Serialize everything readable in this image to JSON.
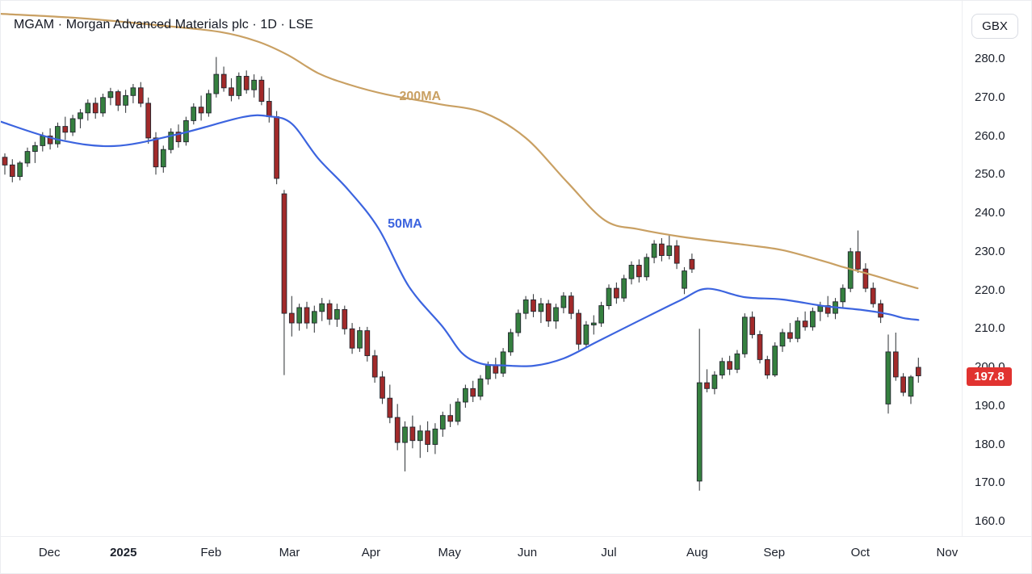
{
  "header": {
    "symbol_title": "MGAM · Morgan Advanced Materials plc · 1D · LSE",
    "currency_button": "GBX"
  },
  "price_axis": {
    "ticks": [
      "280.0",
      "270.0",
      "260.0",
      "250.0",
      "240.0",
      "230.0",
      "220.0",
      "210.0",
      "200.0",
      "190.0",
      "180.0",
      "170.0",
      "160.0"
    ],
    "min": 160,
    "max": 280,
    "last_price": "197.8",
    "last_price_value": 197.8
  },
  "time_axis": {
    "months": [
      {
        "label": "Dec",
        "index": 5.9
      },
      {
        "label": "2025",
        "index": 15.7,
        "bold": true
      },
      {
        "label": "Feb",
        "index": 27.3
      },
      {
        "label": "Mar",
        "index": 37.7
      },
      {
        "label": "Apr",
        "index": 48.5
      },
      {
        "label": "May",
        "index": 58.9
      },
      {
        "label": "Jun",
        "index": 69.2
      },
      {
        "label": "Jul",
        "index": 80.0
      },
      {
        "label": "Aug",
        "index": 91.7
      },
      {
        "label": "Sep",
        "index": 101.9
      },
      {
        "label": "Oct",
        "index": 113.3
      },
      {
        "label": "Nov",
        "index": 124.8
      }
    ]
  },
  "chart_data": {
    "type": "candlestick",
    "symbol": "MGAM",
    "company": "Morgan Advanced Materials plc",
    "interval": "1D",
    "exchange": "LSE",
    "unit": "GBX",
    "ylim": [
      160,
      280
    ],
    "grid": false,
    "last_close": 197.8,
    "colors": {
      "up": "#35803F",
      "down": "#A22A2A",
      "wick": "#3C4043",
      "body_border": "#21252E",
      "ma50": "#3C64DF",
      "ma200": "#C9A063",
      "last_label_bg": "#E13330"
    },
    "candles": [
      [
        254.5,
        255.5,
        250.0,
        252.5
      ],
      [
        252.5,
        254.0,
        248.0,
        249.5
      ],
      [
        249.5,
        253.5,
        248.5,
        253.0
      ],
      [
        253.0,
        257.0,
        252.0,
        256.0
      ],
      [
        256.0,
        258.5,
        253.0,
        257.5
      ],
      [
        257.5,
        261.0,
        256.0,
        260.0
      ],
      [
        260.0,
        262.0,
        256.5,
        258.0
      ],
      [
        258.0,
        263.5,
        257.0,
        262.5
      ],
      [
        262.5,
        265.0,
        259.0,
        261.0
      ],
      [
        261.0,
        265.5,
        260.0,
        264.5
      ],
      [
        264.5,
        267.0,
        262.0,
        266.0
      ],
      [
        266.0,
        269.5,
        264.0,
        268.5
      ],
      [
        268.5,
        270.0,
        264.5,
        266.0
      ],
      [
        266.0,
        271.0,
        265.0,
        270.0
      ],
      [
        270.0,
        272.5,
        268.0,
        271.5
      ],
      [
        271.5,
        272.0,
        266.5,
        268.0
      ],
      [
        268.0,
        272.0,
        266.0,
        270.5
      ],
      [
        270.5,
        273.5,
        268.5,
        272.5
      ],
      [
        272.5,
        274.0,
        267.5,
        268.5
      ],
      [
        268.5,
        270.0,
        258.0,
        259.5
      ],
      [
        259.5,
        261.0,
        250.0,
        252.0
      ],
      [
        252.0,
        257.5,
        250.5,
        256.5
      ],
      [
        256.5,
        262.0,
        255.5,
        261.0
      ],
      [
        261.0,
        263.0,
        257.0,
        258.5
      ],
      [
        258.5,
        265.0,
        257.5,
        264.0
      ],
      [
        264.0,
        268.5,
        263.0,
        267.5
      ],
      [
        267.5,
        270.5,
        264.0,
        266.0
      ],
      [
        266.0,
        272.0,
        265.0,
        271.0
      ],
      [
        271.0,
        280.5,
        270.0,
        276.0
      ],
      [
        276.0,
        278.0,
        271.5,
        272.5
      ],
      [
        272.5,
        275.0,
        269.0,
        270.5
      ],
      [
        270.5,
        276.5,
        269.5,
        275.5
      ],
      [
        275.5,
        277.0,
        271.0,
        272.0
      ],
      [
        272.0,
        276.0,
        270.0,
        274.5
      ],
      [
        274.5,
        275.5,
        268.0,
        269.0
      ],
      [
        269.0,
        272.5,
        263.5,
        265.0
      ],
      [
        265.0,
        266.5,
        247.5,
        249.0
      ],
      [
        245.0,
        246.0,
        198.0,
        214.0
      ],
      [
        214.0,
        218.5,
        208.0,
        211.5
      ],
      [
        211.5,
        216.5,
        209.5,
        215.5
      ],
      [
        215.5,
        217.0,
        210.0,
        211.5
      ],
      [
        211.5,
        216.0,
        209.0,
        214.5
      ],
      [
        214.5,
        218.0,
        212.0,
        216.5
      ],
      [
        216.5,
        217.5,
        211.0,
        212.5
      ],
      [
        212.5,
        216.5,
        210.5,
        215.0
      ],
      [
        215.0,
        216.0,
        208.5,
        210.0
      ],
      [
        210.0,
        211.5,
        203.5,
        205.0
      ],
      [
        205.0,
        210.5,
        204.0,
        209.5
      ],
      [
        209.5,
        210.5,
        201.5,
        203.0
      ],
      [
        203.0,
        204.5,
        196.0,
        197.5
      ],
      [
        197.5,
        199.0,
        190.5,
        192.0
      ],
      [
        192.0,
        195.5,
        185.5,
        187.0
      ],
      [
        187.0,
        190.5,
        178.5,
        180.5
      ],
      [
        180.5,
        186.0,
        173.0,
        184.5
      ],
      [
        184.5,
        187.5,
        179.0,
        181.0
      ],
      [
        181.0,
        185.0,
        176.5,
        183.5
      ],
      [
        183.5,
        186.0,
        178.0,
        180.0
      ],
      [
        180.0,
        185.5,
        177.5,
        184.0
      ],
      [
        184.0,
        188.5,
        182.0,
        187.5
      ],
      [
        187.5,
        190.5,
        184.5,
        186.0
      ],
      [
        186.0,
        192.0,
        185.0,
        191.0
      ],
      [
        191.0,
        195.5,
        189.5,
        194.5
      ],
      [
        194.5,
        196.5,
        191.0,
        192.5
      ],
      [
        192.5,
        198.0,
        191.5,
        197.0
      ],
      [
        197.0,
        201.5,
        195.5,
        200.5
      ],
      [
        200.5,
        202.5,
        197.0,
        198.5
      ],
      [
        198.5,
        205.0,
        197.5,
        204.0
      ],
      [
        204.0,
        210.0,
        203.0,
        209.0
      ],
      [
        209.0,
        215.0,
        208.0,
        214.0
      ],
      [
        214.0,
        218.5,
        212.5,
        217.5
      ],
      [
        217.5,
        219.0,
        213.0,
        214.5
      ],
      [
        214.5,
        218.0,
        211.5,
        216.5
      ],
      [
        216.5,
        217.5,
        210.5,
        212.0
      ],
      [
        212.0,
        216.5,
        210.0,
        215.5
      ],
      [
        215.5,
        219.5,
        214.0,
        218.5
      ],
      [
        218.5,
        219.5,
        212.5,
        214.0
      ],
      [
        214.0,
        215.0,
        204.5,
        206.0
      ],
      [
        206.0,
        212.0,
        205.0,
        211.0
      ],
      [
        211.0,
        213.5,
        208.5,
        211.5
      ],
      [
        211.5,
        217.0,
        210.5,
        216.0
      ],
      [
        216.0,
        221.5,
        215.0,
        220.5
      ],
      [
        220.5,
        222.0,
        216.5,
        218.0
      ],
      [
        218.0,
        224.0,
        217.0,
        223.0
      ],
      [
        223.0,
        227.5,
        221.5,
        226.5
      ],
      [
        226.5,
        228.0,
        222.0,
        223.5
      ],
      [
        223.5,
        229.5,
        222.5,
        228.5
      ],
      [
        228.5,
        233.0,
        227.0,
        232.0
      ],
      [
        232.0,
        233.5,
        227.5,
        229.0
      ],
      [
        229.0,
        234.5,
        228.0,
        231.5
      ],
      [
        231.5,
        233.0,
        225.5,
        227.0
      ],
      [
        220.5,
        226.0,
        219.0,
        225.0
      ],
      [
        228.0,
        229.5,
        224.5,
        225.5
      ],
      [
        170.5,
        210.0,
        168.0,
        196.0
      ],
      [
        196.0,
        199.5,
        193.5,
        194.5
      ],
      [
        194.5,
        199.0,
        193.0,
        198.0
      ],
      [
        198.0,
        202.5,
        197.0,
        201.5
      ],
      [
        201.5,
        203.0,
        198.0,
        199.5
      ],
      [
        199.5,
        204.5,
        198.5,
        203.5
      ],
      [
        203.5,
        214.0,
        202.5,
        213.0
      ],
      [
        213.0,
        214.5,
        207.5,
        208.5
      ],
      [
        208.5,
        209.5,
        201.0,
        202.0
      ],
      [
        202.0,
        203.0,
        197.0,
        198.0
      ],
      [
        198.0,
        206.5,
        197.5,
        205.5
      ],
      [
        205.5,
        210.0,
        204.0,
        209.0
      ],
      [
        209.0,
        211.5,
        206.5,
        207.5
      ],
      [
        207.5,
        213.0,
        206.5,
        212.0
      ],
      [
        212.0,
        214.5,
        209.5,
        210.5
      ],
      [
        210.5,
        215.5,
        209.5,
        214.5
      ],
      [
        214.5,
        217.0,
        212.0,
        216.0
      ],
      [
        216.0,
        218.5,
        213.0,
        214.0
      ],
      [
        214.0,
        218.0,
        212.5,
        217.0
      ],
      [
        217.0,
        221.5,
        215.5,
        220.5
      ],
      [
        220.5,
        231.0,
        219.5,
        230.0
      ],
      [
        230.0,
        235.5,
        224.5,
        225.5
      ],
      [
        225.5,
        227.0,
        219.5,
        220.5
      ],
      [
        220.5,
        222.0,
        215.5,
        216.5
      ],
      [
        216.5,
        217.5,
        211.5,
        213.0
      ],
      [
        190.5,
        208.5,
        188.0,
        204.0
      ],
      [
        204.0,
        209.0,
        196.5,
        197.5
      ],
      [
        197.5,
        198.5,
        192.5,
        193.5
      ],
      [
        192.5,
        198.0,
        190.5,
        197.5
      ],
      [
        200.0,
        202.5,
        196.0,
        197.8
      ]
    ],
    "overlays": [
      {
        "name": "200MA",
        "color": "#C9A063",
        "label": {
          "index": 55,
          "price": 270.4
        },
        "points": [
          [
            -0.5,
            291.7
          ],
          [
            10.5,
            290.5
          ],
          [
            21,
            288.6
          ],
          [
            28.5,
            287.0
          ],
          [
            33.5,
            284.5
          ],
          [
            37.5,
            281.0
          ],
          [
            41.5,
            276.3
          ],
          [
            45.5,
            273.4
          ],
          [
            50.5,
            270.8
          ],
          [
            57.5,
            268.3
          ],
          [
            63.5,
            266.0
          ],
          [
            69,
            259.5
          ],
          [
            74.5,
            248.0
          ],
          [
            79.5,
            238.1
          ],
          [
            84,
            235.8
          ],
          [
            89.5,
            233.9
          ],
          [
            98,
            231.8
          ],
          [
            103,
            230.4
          ],
          [
            108.5,
            227.5
          ],
          [
            110.7,
            226.2
          ],
          [
            115,
            223.9
          ],
          [
            118.2,
            222.0
          ],
          [
            120.9,
            220.5
          ]
        ]
      },
      {
        "name": "50MA",
        "color": "#3C64DF",
        "label": {
          "index": 53,
          "price": 237.3
        },
        "points": [
          [
            -0.5,
            263.7
          ],
          [
            7,
            259.1
          ],
          [
            14.5,
            257.4
          ],
          [
            23,
            260.5
          ],
          [
            31.5,
            264.9
          ],
          [
            35,
            265.1
          ],
          [
            38,
            263.2
          ],
          [
            41.5,
            254.2
          ],
          [
            45.5,
            246.0
          ],
          [
            49.5,
            236.0
          ],
          [
            53.5,
            221.0
          ],
          [
            58,
            210.5
          ],
          [
            60.5,
            203.8
          ],
          [
            63,
            201.0
          ],
          [
            66,
            200.5
          ],
          [
            70,
            200.4
          ],
          [
            74,
            202.3
          ],
          [
            78.5,
            206.7
          ],
          [
            84,
            212.1
          ],
          [
            89.5,
            217.4
          ],
          [
            93,
            220.4
          ],
          [
            98,
            218.2
          ],
          [
            103,
            217.6
          ],
          [
            108.5,
            215.9
          ],
          [
            113.5,
            214.9
          ],
          [
            117,
            213.8
          ],
          [
            119,
            212.8
          ],
          [
            121,
            212.3
          ]
        ]
      }
    ]
  }
}
